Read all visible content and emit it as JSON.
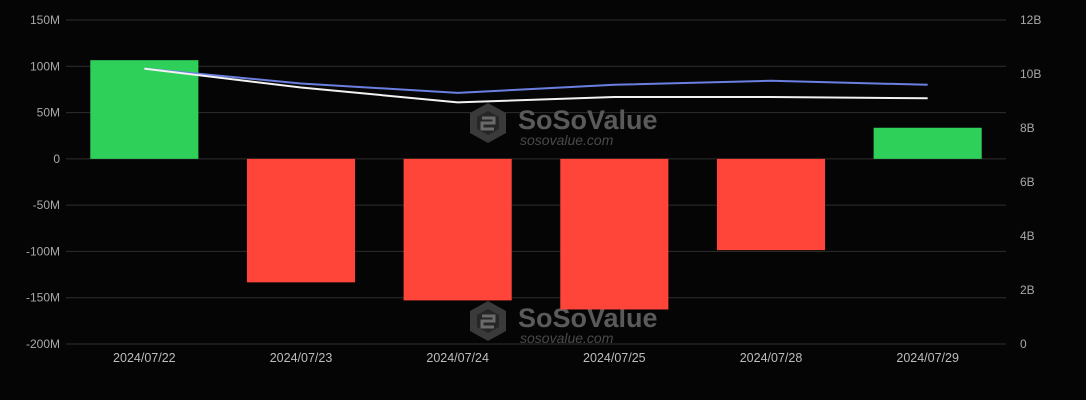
{
  "watermark": {
    "brand": "SoSoValue",
    "url": "sosovalue.com"
  },
  "chart_data": {
    "type": "bar",
    "title": "",
    "xlabel": "",
    "ylabel": "",
    "categories": [
      "2024/07/22",
      "2024/07/23",
      "2024/07/24",
      "2024/07/25",
      "2024/07/28",
      "2024/07/29"
    ],
    "ylim": [
      -200,
      150
    ],
    "yticks": [
      "150M",
      "100M",
      "50M",
      "0",
      "-50M",
      "-100M",
      "-150M",
      "-200M"
    ],
    "y2lim": [
      0,
      12
    ],
    "y2ticks": [
      "12B",
      "10B",
      "8B",
      "6B",
      "4B",
      "2B",
      "0"
    ],
    "grid": true,
    "legend": "none",
    "bars": {
      "axis": "left",
      "unit": "M",
      "values": [
        106.6,
        -133.4,
        -152.9,
        -162.7,
        -98.6,
        33.6
      ],
      "positive_color": "#2fd05a",
      "negative_color": "#ff443a"
    },
    "series": [
      {
        "axis": "right",
        "unit": "B",
        "color": "#6b7fe0",
        "values": [
          10.2,
          9.65,
          9.3,
          9.6,
          9.75,
          9.6
        ]
      },
      {
        "axis": "right",
        "unit": "B",
        "color": "#f2f2f2",
        "values": [
          10.2,
          9.5,
          8.95,
          9.15,
          9.15,
          9.1
        ]
      }
    ]
  }
}
